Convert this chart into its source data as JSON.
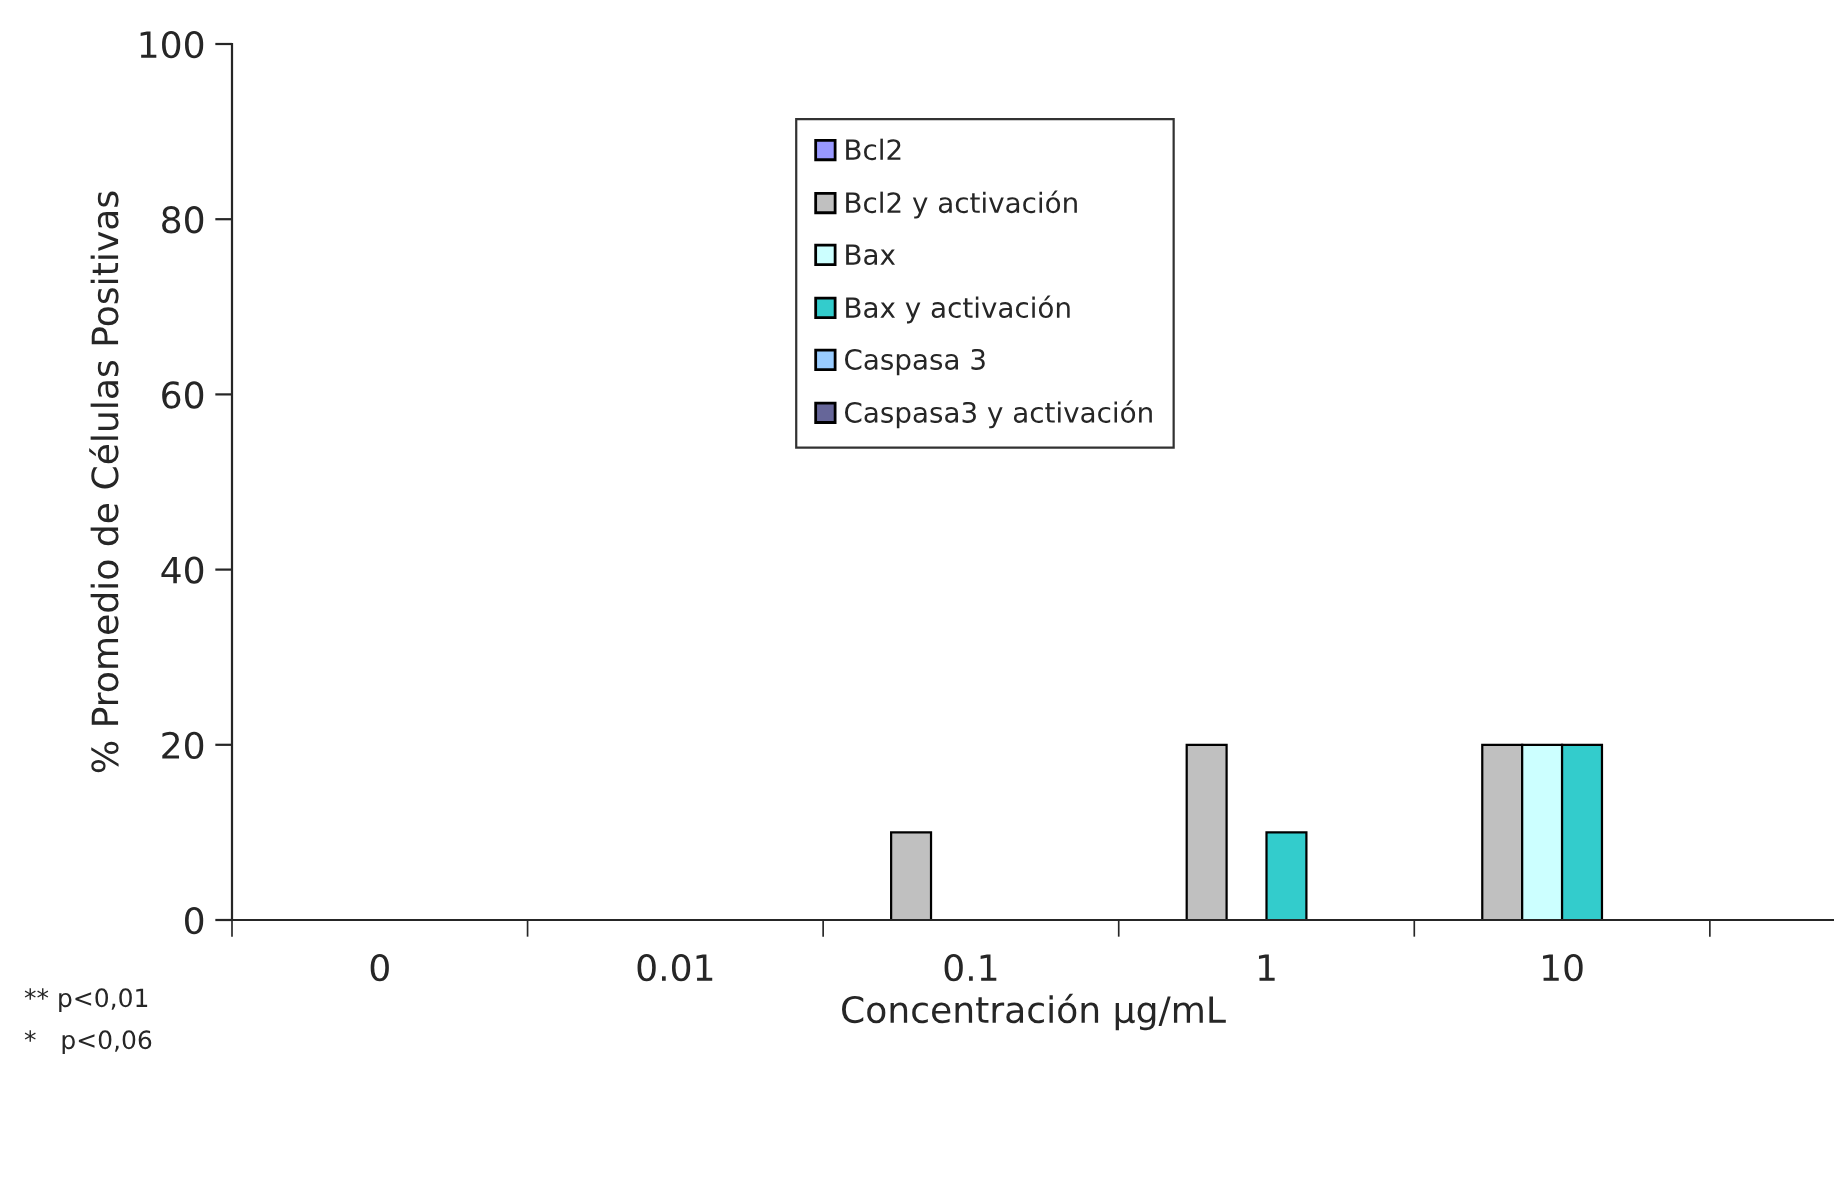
{
  "chart_data": {
    "type": "bar",
    "categories": [
      "0",
      "0.01",
      "0.1",
      "1",
      "10"
    ],
    "series": [
      {
        "name": "Bcl2",
        "color": "#9999ff",
        "values": [
          0,
          0,
          0,
          0,
          0
        ]
      },
      {
        "name": "Bcl2 y activación",
        "color": "#c0c0c0",
        "values": [
          0,
          0,
          10,
          20,
          20
        ]
      },
      {
        "name": "Bax",
        "color": "#ccffff",
        "values": [
          0,
          0,
          0,
          0,
          20
        ]
      },
      {
        "name": "Bax y activación",
        "color": "#33cccc",
        "values": [
          0,
          0,
          0,
          10,
          20
        ]
      },
      {
        "name": "Caspasa 3",
        "color": "#99ccff",
        "values": [
          0,
          0,
          0,
          0,
          0
        ]
      },
      {
        "name": "Caspasa3 y activación",
        "color": "#666699",
        "values": [
          0,
          0,
          0,
          0,
          0
        ]
      }
    ],
    "xlabel": "Concentración μg/mL",
    "ylabel": "% Promedio de Células Positivas",
    "ylim": [
      0,
      100
    ],
    "yticks": [
      0,
      20,
      40,
      60,
      80,
      100
    ],
    "annotations": [
      "** p<0,01",
      "*   p<0,06"
    ],
    "legend": "top",
    "grid": false
  }
}
